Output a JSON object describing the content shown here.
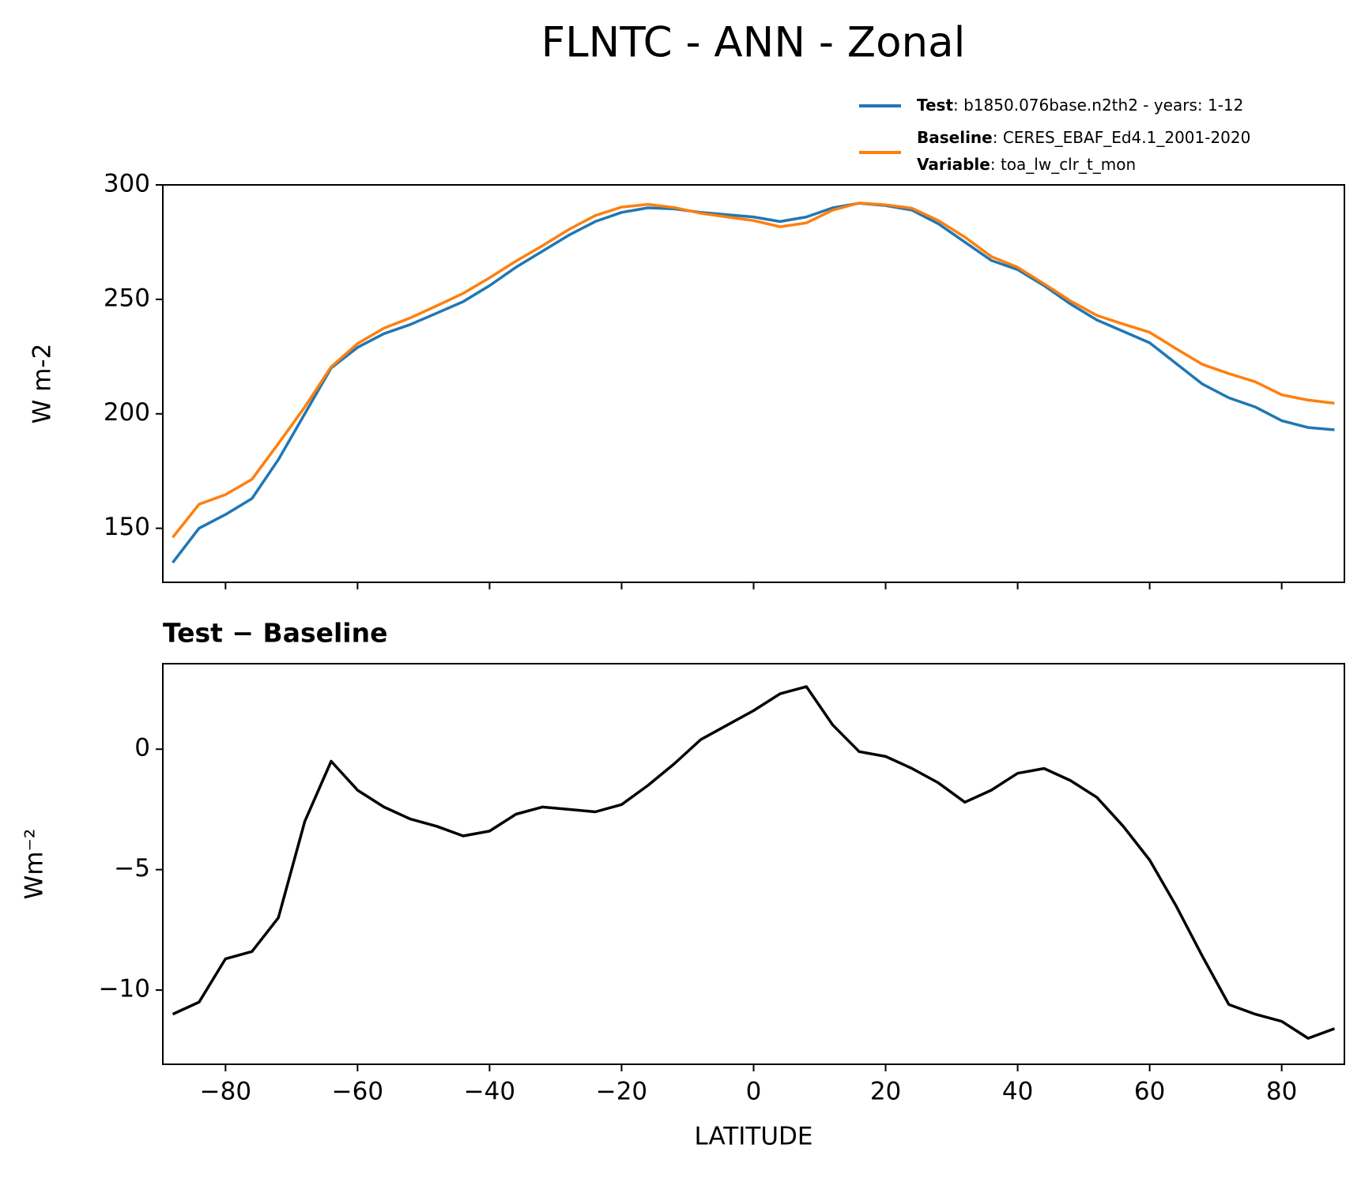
{
  "chart_data": [
    {
      "type": "line",
      "title": "FLNTC - ANN - Zonal",
      "ylabel": "W m-2",
      "x": [
        -88,
        -84,
        -80,
        -76,
        -72,
        -68,
        -64,
        -60,
        -56,
        -52,
        -48,
        -44,
        -40,
        -36,
        -32,
        -28,
        -24,
        -20,
        -16,
        -12,
        -8,
        -4,
        0,
        4,
        8,
        12,
        16,
        20,
        24,
        28,
        32,
        36,
        40,
        44,
        48,
        52,
        56,
        60,
        64,
        68,
        72,
        76,
        80,
        84,
        88
      ],
      "series": [
        {
          "name": "Test",
          "description": ": b1850.076base.n2th2 - years: 1-12",
          "color": "#1f77b4",
          "values": [
            135,
            150,
            156,
            163,
            180,
            200,
            220,
            229,
            235,
            239,
            244,
            249,
            256,
            264,
            271,
            278,
            284,
            288,
            290,
            289.5,
            288,
            287,
            286,
            284,
            286,
            290,
            292,
            291,
            289,
            283,
            275,
            267,
            263,
            256,
            248,
            241,
            236,
            231,
            222,
            213,
            207,
            203,
            197,
            194,
            193
          ]
        },
        {
          "name": "Baseline",
          "description": ": CERES_EBAF_Ed4.1_2001-2020",
          "color": "#ff7f0e",
          "values": [
            146,
            160.5,
            164.7,
            171.4,
            187,
            203,
            220.5,
            230.7,
            237.4,
            241.9,
            247.2,
            252.6,
            259.4,
            266.7,
            273.4,
            280.5,
            286.6,
            290.3,
            291.5,
            290.1,
            287.6,
            286,
            284.4,
            281.7,
            283.4,
            289,
            292.1,
            291.3,
            289.8,
            284.4,
            277.2,
            268.7,
            264,
            256.8,
            249.3,
            243,
            239.2,
            235.6,
            228.5,
            221.6,
            217.6,
            214,
            208.3,
            206,
            204.6
          ]
        }
      ],
      "variable": {
        "name": "Variable",
        "value": ": toa_lw_clr_t_mon"
      },
      "xlim": [
        -89.5,
        89.5
      ],
      "xticks": [
        -80,
        -60,
        -40,
        -20,
        0,
        20,
        40,
        60,
        80
      ],
      "ylim": [
        126.4,
        300
      ],
      "yticks": [
        150,
        200,
        250,
        300
      ]
    },
    {
      "type": "line",
      "title": "Test − Baseline",
      "ylabel": "Wm⁻²",
      "xlabel": "LATITUDE",
      "color": "#000000",
      "x": [
        -88,
        -84,
        -80,
        -76,
        -72,
        -68,
        -64,
        -60,
        -56,
        -52,
        -48,
        -44,
        -40,
        -36,
        -32,
        -28,
        -24,
        -20,
        -16,
        -12,
        -8,
        -4,
        0,
        4,
        8,
        12,
        16,
        20,
        24,
        28,
        32,
        36,
        40,
        44,
        48,
        52,
        56,
        60,
        64,
        68,
        72,
        76,
        80,
        84,
        88
      ],
      "values": [
        -11,
        -10.5,
        -8.7,
        -8.4,
        -7,
        -3,
        -0.5,
        -1.7,
        -2.4,
        -2.9,
        -3.2,
        -3.6,
        -3.4,
        -2.7,
        -2.4,
        -2.5,
        -2.6,
        -2.3,
        -1.5,
        -0.6,
        0.4,
        1.0,
        1.6,
        2.3,
        2.6,
        1.0,
        -0.1,
        -0.3,
        -0.8,
        -1.4,
        -2.2,
        -1.7,
        -1.0,
        -0.8,
        -1.3,
        -2.0,
        -3.2,
        -4.6,
        -6.5,
        -8.6,
        -10.6,
        -11,
        -11.3,
        -12,
        -11.6
      ],
      "xlim": [
        -89.5,
        89.5
      ],
      "xticks": [
        {
          "value": -80,
          "label": "−80"
        },
        {
          "value": -60,
          "label": "−60"
        },
        {
          "value": -40,
          "label": "−40"
        },
        {
          "value": -20,
          "label": "−20"
        },
        0,
        20,
        40,
        60,
        80
      ],
      "ylim": [
        -13.08,
        3.55
      ],
      "yticks": [
        {
          "value": -10,
          "label": "−10"
        },
        {
          "value": -5,
          "label": "−5"
        },
        0
      ]
    }
  ]
}
